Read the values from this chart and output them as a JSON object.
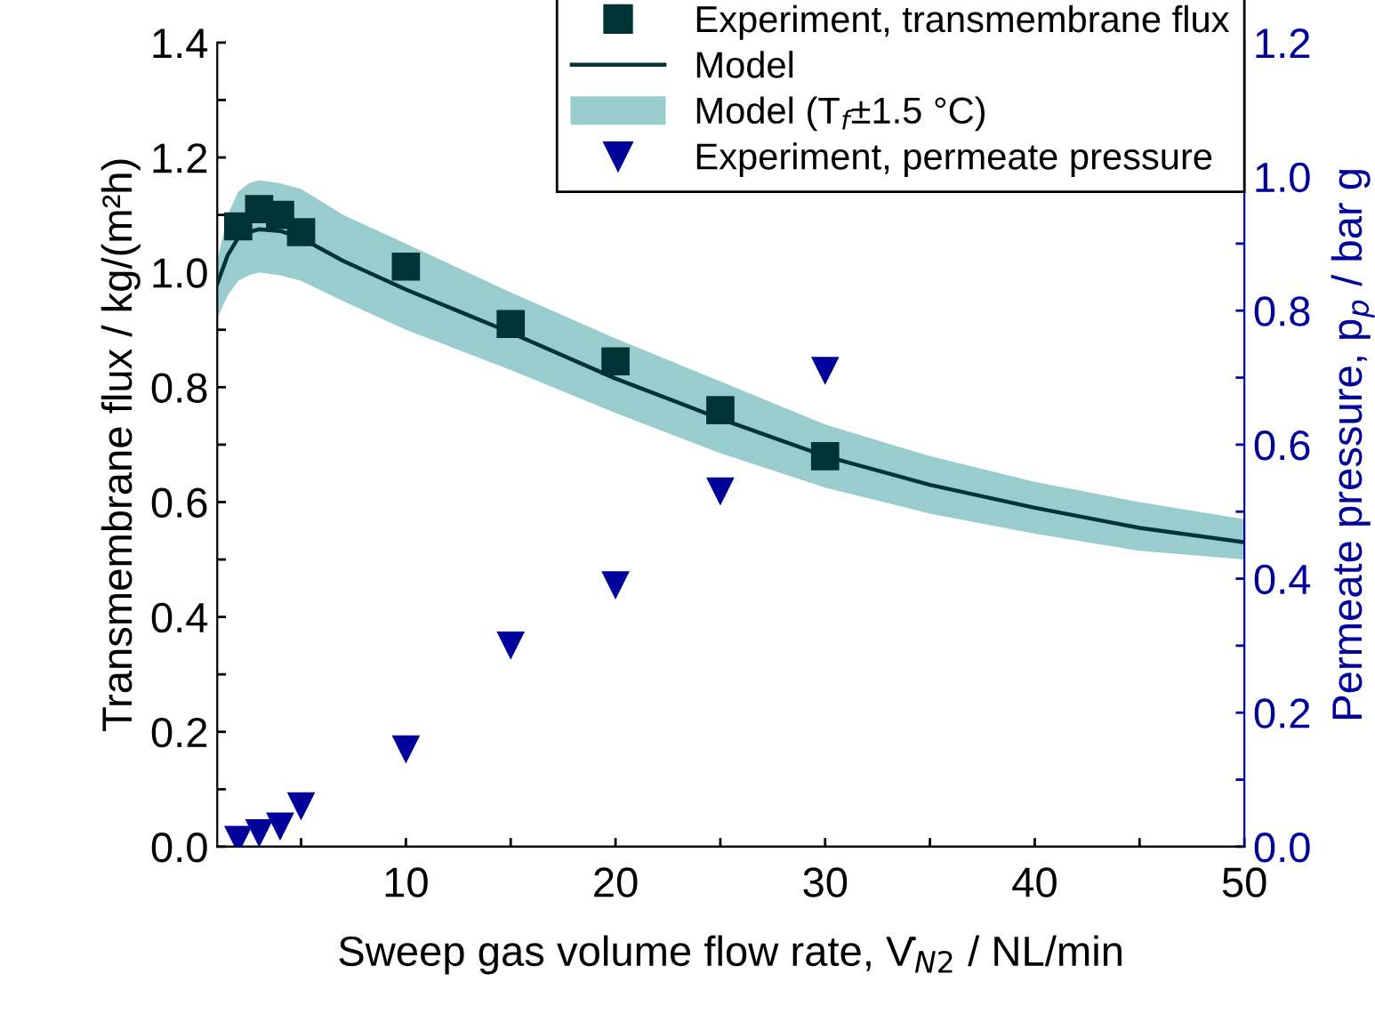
{
  "chart_data": {
    "type": "scatter",
    "xlabel": "Sweep gas volume flow rate, V̇$_{N2}$ / NL/min",
    "ylabel": "Transmembrane flux / kg/(m²h)",
    "y2label": "Permeate pressure, p$_{p}$ / bar g",
    "xlim": [
      1,
      50
    ],
    "xticks": [
      {
        "value": 5,
        "label": null
      },
      10,
      {
        "value": 15,
        "label": null
      },
      20,
      {
        "value": 25,
        "label": null
      },
      30,
      {
        "value": 35,
        "label": null
      },
      40,
      {
        "value": 45,
        "label": null
      },
      50
    ],
    "ylim": [
      0,
      1.4
    ],
    "yticks": [
      {
        "value": 0,
        "label": "0.0"
      },
      {
        "value": 0.1,
        "label": null
      },
      0.2,
      {
        "value": 0.3,
        "label": null
      },
      0.4,
      {
        "value": 0.5,
        "label": null
      },
      0.6,
      {
        "value": 0.7,
        "label": null
      },
      0.8,
      {
        "value": 0.9,
        "label": null
      },
      {
        "value": 1,
        "label": "1.0"
      },
      {
        "value": 1.1,
        "label": null
      },
      1.2,
      {
        "value": 1.3,
        "label": null
      },
      1.4
    ],
    "y2lim": [
      0,
      1.2
    ],
    "y2ticks": [
      {
        "value": 0,
        "label": "0.0"
      },
      {
        "value": 0.1,
        "label": null
      },
      0.2,
      {
        "value": 0.3,
        "label": null
      },
      0.4,
      {
        "value": 0.5,
        "label": null
      },
      0.6,
      {
        "value": 0.7,
        "label": null
      },
      0.8,
      {
        "value": 0.9,
        "label": null
      },
      {
        "value": 1,
        "label": "1.0"
      },
      {
        "value": 1.1,
        "label": null
      },
      1.2
    ],
    "grid": false,
    "legend": "top right",
    "series": [
      {
        "name": "Experiment, transmembrane flux",
        "marker": "square",
        "color": "#003333",
        "x": [
          2,
          3,
          4,
          5,
          10,
          15,
          20,
          25,
          30
        ],
        "values": [
          1.08,
          1.11,
          1.1,
          1.07,
          1.01,
          0.91,
          0.845,
          0.76,
          0.68
        ]
      },
      {
        "name": "Model",
        "type": "line",
        "line_style": "solid",
        "color": "#003333",
        "x": [
          1,
          1.5,
          2,
          2.5,
          3,
          4,
          5,
          7,
          10,
          15,
          20,
          25,
          30,
          35,
          40,
          45,
          50
        ],
        "values": [
          0.98,
          1.03,
          1.06,
          1.07,
          1.075,
          1.072,
          1.06,
          1.02,
          0.97,
          0.895,
          0.815,
          0.745,
          0.68,
          0.63,
          0.59,
          0.555,
          0.53
        ]
      },
      {
        "name": "Model (T$_{f}$±1.5 °C)",
        "type": "line",
        "line_style": "solid",
        "color": "#99cccc",
        "x": [
          1,
          1.5,
          2,
          2.5,
          3,
          4,
          5,
          7,
          10,
          15,
          20,
          25,
          30,
          35,
          40,
          45,
          50
        ],
        "values": [
          null,
          null,
          null,
          null,
          null,
          null,
          null,
          null,
          null,
          null,
          null,
          null,
          null,
          null,
          null,
          null,
          null
        ],
        "upper": [
          1.02,
          1.1,
          1.14,
          1.155,
          1.16,
          1.155,
          1.145,
          1.1,
          1.05,
          0.965,
          0.885,
          0.81,
          0.735,
          0.68,
          0.635,
          0.6,
          0.57
        ],
        "lower": [
          0.92,
          0.96,
          0.985,
          0.995,
          1.0,
          0.995,
          0.985,
          0.95,
          0.9,
          0.83,
          0.755,
          0.685,
          0.625,
          0.58,
          0.545,
          0.515,
          0.5
        ]
      },
      {
        "name": "Experiment, permeate pressure",
        "marker": "triangle",
        "axis": "y2",
        "color": "#00009b",
        "x": [
          2,
          3,
          4,
          5,
          10,
          15,
          20,
          25,
          30
        ],
        "values": [
          0.01,
          0.02,
          0.03,
          0.06,
          0.145,
          0.3,
          0.39,
          0.53,
          0.71
        ]
      }
    ]
  }
}
